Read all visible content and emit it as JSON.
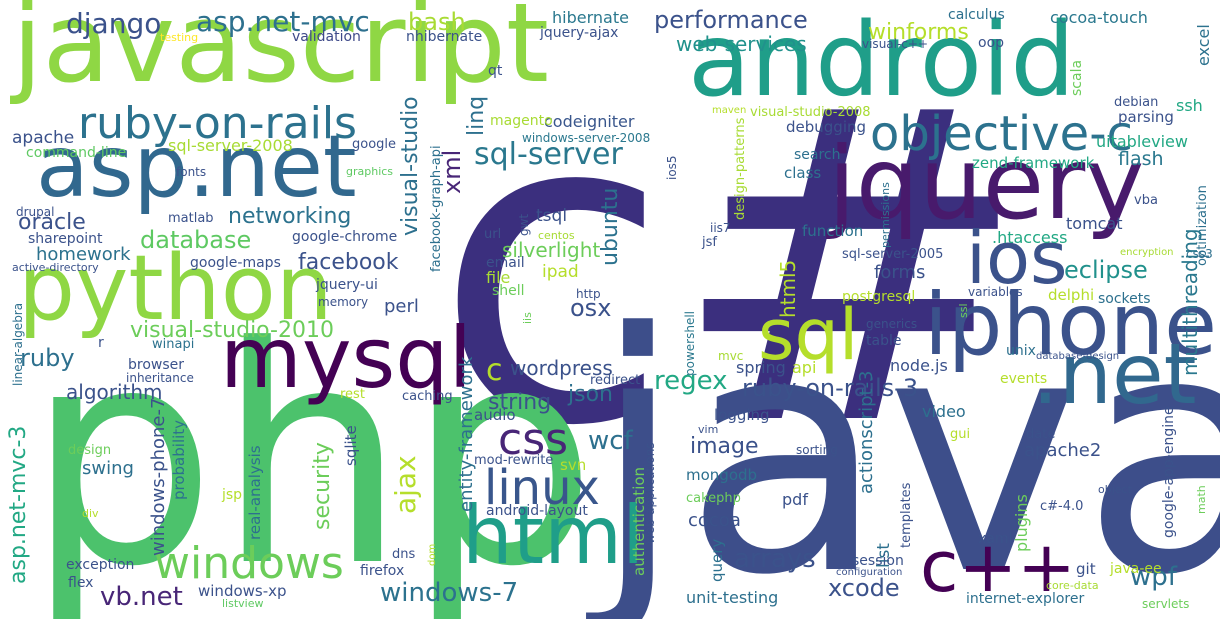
{
  "words": {
    "csharp": {
      "text": "c#",
      "color": "#3b2f7e"
    },
    "java": {
      "text": "java",
      "color": "#3d4e8a"
    },
    "php": {
      "text": "php",
      "color": "#4cc26c"
    },
    "javascript": {
      "text": "javascript",
      "color": "#8fd744"
    },
    "android": {
      "text": "android",
      "color": "#1f9e89"
    },
    "jquery": {
      "text": "jquery",
      "color": "#481a6c"
    },
    "python": {
      "text": "python",
      "color": "#8fd744"
    },
    "asp_net": {
      "text": "asp.net",
      "color": "#31688e"
    },
    "iphone": {
      "text": "iphone",
      "color": "#3b528b"
    },
    "mysql": {
      "text": "mysql",
      "color": "#440154"
    },
    "html": {
      "text": "html",
      "color": "#1f9e89"
    },
    "net": {
      "text": ".net",
      "color": "#31688e"
    },
    "ios": {
      "text": "ios",
      "color": "#3b528b"
    },
    "objective_c": {
      "text": "objective-c",
      "color": "#2c728e"
    },
    "sql": {
      "text": "sql",
      "color": "#b5de2b"
    },
    "cpp": {
      "text": "c++",
      "color": "#440154"
    },
    "ruby_on_rails": {
      "text": "ruby-on-rails",
      "color": "#2c728e"
    },
    "windows": {
      "text": "windows",
      "color": "#6ccd5a"
    },
    "linux": {
      "text": "linux",
      "color": "#39568c"
    },
    "css": {
      "text": "css",
      "color": "#482677"
    },
    "sql_server": {
      "text": "sql-server",
      "color": "#2a788e"
    },
    "django": {
      "text": "django",
      "color": "#3b528b"
    },
    "asp_net_mvc": {
      "text": "asp.net-mvc",
      "color": "#2d708e"
    },
    "bash": {
      "text": "bash",
      "color": "#a8db34"
    },
    "hibernate": {
      "text": "hibernate",
      "color": "#2a788e"
    },
    "performance": {
      "text": "performance",
      "color": "#3b528b"
    },
    "winforms": {
      "text": "winforms",
      "color": "#b5de2b"
    },
    "calculus": {
      "text": "calculus",
      "color": "#2d708e"
    },
    "cocoa_touch": {
      "text": "cocoa-touch",
      "color": "#2a788e"
    },
    "excel": {
      "text": "excel",
      "color": "#2c728e"
    },
    "oop": {
      "text": "oop",
      "color": "#3b528b"
    },
    "visual_cpp_top": {
      "text": "visual-c++",
      "color": "#3b528b"
    },
    "web_services": {
      "text": "web-services",
      "color": "#21918c"
    },
    "validation": {
      "text": "validation",
      "color": "#3e4989"
    },
    "nhibernate": {
      "text": "nhibernate",
      "color": "#3b528b"
    },
    "jquery_ajax": {
      "text": "jquery-ajax",
      "color": "#3b528b"
    },
    "testing": {
      "text": "testing",
      "color": "#fde725"
    },
    "ssh": {
      "text": "ssh",
      "color": "#22a884"
    },
    "scala": {
      "text": "scala",
      "color": "#6ccd5a"
    },
    "debian": {
      "text": "debian",
      "color": "#3b528b"
    },
    "parsing": {
      "text": "parsing",
      "color": "#3b528b"
    },
    "uitableview": {
      "text": "uitableview",
      "color": "#22a884"
    },
    "qt": {
      "text": "qt",
      "color": "#3b528b"
    },
    "linq": {
      "text": "linq",
      "color": "#2d708e"
    },
    "visual_studio": {
      "text": "visual-studio",
      "color": "#2d708e"
    },
    "xml": {
      "text": "xml",
      "color": "#482677"
    },
    "codeigniter": {
      "text": "codeigniter",
      "color": "#39568c"
    },
    "magento": {
      "text": "magento",
      "color": "#a8db34"
    },
    "windows_server_2008": {
      "text": "windows-server-2008",
      "color": "#2a788e"
    },
    "maven": {
      "text": "maven",
      "color": "#b5de2b"
    },
    "design_patterns": {
      "text": "design-patterns",
      "color": "#a8db34"
    },
    "visual_studio_2008": {
      "text": "visual-studio-2008",
      "color": "#a8db34"
    },
    "debugging": {
      "text": "debugging",
      "color": "#3b528b"
    },
    "apache": {
      "text": "apache",
      "color": "#3b528b"
    },
    "command_line": {
      "text": "command-line",
      "color": "#5ec962"
    },
    "sql_server_2008": {
      "text": "sql-server-2008",
      "color": "#a8db34"
    },
    "google": {
      "text": "google",
      "color": "#3b528b"
    },
    "facebook_graph_api": {
      "text": "facebook-graph-api",
      "color": "#2d708e"
    },
    "zend_framework": {
      "text": "zend-framework",
      "color": "#22a884"
    },
    "flash": {
      "text": "flash",
      "color": "#2a788e"
    },
    "search": {
      "text": "search",
      "color": "#2d708e"
    },
    "class": {
      "text": "class",
      "color": "#2d708e"
    },
    "fonts": {
      "text": "fonts",
      "color": "#3b528b"
    },
    "graphics": {
      "text": "graphics",
      "color": "#5ec962"
    },
    "ios5": {
      "text": "ios5",
      "color": "#3b528b"
    },
    "drupal": {
      "text": "drupal",
      "color": "#3b528b"
    },
    "oracle": {
      "text": "oracle",
      "color": "#3b528b"
    },
    "networking": {
      "text": "networking",
      "color": "#2c728e"
    },
    "matlab": {
      "text": "matlab",
      "color": "#3b528b"
    },
    "database": {
      "text": "database",
      "color": "#5ec962"
    },
    "sharepoint": {
      "text": "sharepoint",
      "color": "#3b528b"
    },
    "google_chrome": {
      "text": "google-chrome",
      "color": "#3b528b"
    },
    "homework": {
      "text": "homework",
      "color": "#2c728e"
    },
    "google_maps": {
      "text": "google-maps",
      "color": "#3b528b"
    },
    "active_directory": {
      "text": "active-directory",
      "color": "#3b528b"
    },
    "facebook": {
      "text": "facebook",
      "color": "#3b528b"
    },
    "jquery_ui": {
      "text": "jquery-ui",
      "color": "#3b528b"
    },
    "memory": {
      "text": "memory",
      "color": "#3b528b"
    },
    "perl": {
      "text": "perl",
      "color": "#3b528b"
    },
    "visual_studio_2010": {
      "text": "visual-studio-2010",
      "color": "#6ccd5a"
    },
    "ruby": {
      "text": "ruby",
      "color": "#2d708e"
    },
    "r": {
      "text": "r",
      "color": "#3b528b"
    },
    "winapi": {
      "text": "winapi",
      "color": "#2c728e"
    },
    "browser": {
      "text": "browser",
      "color": "#3b528b"
    },
    "inheritance": {
      "text": "inheritance",
      "color": "#3b528b"
    },
    "algorithm": {
      "text": "algorithm",
      "color": "#3b528b"
    },
    "linear_algebra": {
      "text": "linear-algebra",
      "color": "#2d708e"
    },
    "asp_net_mvc_3": {
      "text": "asp.net-mvc-3",
      "color": "#22a884"
    },
    "tsql": {
      "text": "tsql",
      "color": "#3b528b"
    },
    "gwt": {
      "text": "gwt",
      "color": "#3b528b"
    },
    "url": {
      "text": "url",
      "color": "#3b528b"
    },
    "centos": {
      "text": "centos",
      "color": "#a8db34"
    },
    "silverlight": {
      "text": "silverlight",
      "color": "#6ccd5a"
    },
    "email": {
      "text": "email",
      "color": "#3b528b"
    },
    "file": {
      "text": "file",
      "color": "#a8db34"
    },
    "shell": {
      "text": "shell",
      "color": "#6ccd5a"
    },
    "iis": {
      "text": "iis",
      "color": "#6ccd5a"
    },
    "ipad": {
      "text": "ipad",
      "color": "#b5de2b"
    },
    "ubuntu": {
      "text": "ubuntu",
      "color": "#2c728e"
    },
    "osx": {
      "text": "osx",
      "color": "#3b528b"
    },
    "http": {
      "text": "http",
      "color": "#3b528b"
    },
    "powershell": {
      "text": "powershell",
      "color": "#2a788e"
    },
    "html5": {
      "text": "html5",
      "color": "#b5de2b"
    },
    "iis7": {
      "text": "iis7",
      "color": "#3b528b"
    },
    "jsf": {
      "text": "jsf",
      "color": "#3b528b"
    },
    "function": {
      "text": "function",
      "color": "#2c728e"
    },
    "htaccess": {
      "text": ".htaccess",
      "color": "#22a884"
    },
    "sql_server_2005": {
      "text": "sql-server-2005",
      "color": "#3b528b"
    },
    "forms": {
      "text": "forms",
      "color": "#3b528b"
    },
    "eclipse": {
      "text": "eclipse",
      "color": "#21918c"
    },
    "permissions": {
      "text": "permissions",
      "color": "#2d708e"
    },
    "optimization": {
      "text": "optimization",
      "color": "#2d708e"
    },
    "encryption": {
      "text": "encryption",
      "color": "#a8db34"
    },
    "css3": {
      "text": "css3",
      "color": "#2d708e"
    },
    "tomcat": {
      "text": "tomcat",
      "color": "#3b528b"
    },
    "vba": {
      "text": "vba",
      "color": "#3b528b"
    },
    "postgresql": {
      "text": "postgresql",
      "color": "#b5de2b"
    },
    "delphi": {
      "text": "delphi",
      "color": "#b5de2b"
    },
    "variables": {
      "text": "variables",
      "color": "#3b528b"
    },
    "ssl": {
      "text": "ssl",
      "color": "#6ccd5a"
    },
    "sockets": {
      "text": "sockets",
      "color": "#2d708e"
    },
    "multithreading": {
      "text": "multithreading",
      "color": "#2a788e"
    },
    "generics": {
      "text": "generics",
      "color": "#3b528b"
    },
    "table": {
      "text": "table",
      "color": "#3b528b"
    },
    "unix": {
      "text": "unix",
      "color": "#2d708e"
    },
    "database_design": {
      "text": "database-design",
      "color": "#3b528b"
    },
    "node_js": {
      "text": "node.js",
      "color": "#3b528b"
    },
    "api": {
      "text": "api",
      "color": "#b5de2b"
    },
    "spring": {
      "text": "spring",
      "color": "#3b528b"
    },
    "mvc": {
      "text": "mvc",
      "color": "#a8db34"
    },
    "wordpress": {
      "text": "wordpress",
      "color": "#3b528b"
    },
    "c": {
      "text": "c",
      "color": "#b5de2b"
    },
    "regex": {
      "text": "regex",
      "color": "#22a884"
    },
    "ruby_on_rails_3": {
      "text": "ruby-on-rails-3",
      "color": "#3b528b"
    },
    "events": {
      "text": "events",
      "color": "#b5de2b"
    },
    "json": {
      "text": "json",
      "color": "#2d708e"
    },
    "string": {
      "text": "string",
      "color": "#3b528b"
    },
    "redirect": {
      "text": "redirect",
      "color": "#3b528b"
    },
    "caching": {
      "text": "caching",
      "color": "#3b528b"
    },
    "rest": {
      "text": "rest",
      "color": "#b5de2b"
    },
    "audio": {
      "text": "audio",
      "color": "#3b528b"
    },
    "actionscript_3": {
      "text": "actionscript-3",
      "color": "#2d708e"
    },
    "logging": {
      "text": "logging",
      "color": "#3b528b"
    },
    "video": {
      "text": "video",
      "color": "#2d708e"
    },
    "gui": {
      "text": "gui",
      "color": "#b5de2b"
    },
    "date": {
      "text": "date",
      "color": "#3b528b"
    },
    "image": {
      "text": "image",
      "color": "#3b528b"
    },
    "wcf": {
      "text": "wcf",
      "color": "#2d708e"
    },
    "ajax": {
      "text": "ajax",
      "color": "#b5de2b"
    },
    "security": {
      "text": "security",
      "color": "#6ccd5a"
    },
    "sqlite": {
      "text": "sqlite",
      "color": "#3b528b"
    },
    "entity_framework": {
      "text": "entity-framework",
      "color": "#2d708e"
    },
    "swing": {
      "text": "swing",
      "color": "#2d708e"
    },
    "probability": {
      "text": "probability",
      "color": "#2c728e"
    },
    "windows_phone_7": {
      "text": "windows-phone-7",
      "color": "#3b528b"
    },
    "design": {
      "text": "design",
      "color": "#6ccd5a"
    },
    "div": {
      "text": "div",
      "color": "#b5de2b"
    },
    "jsp": {
      "text": "jsp",
      "color": "#b5de2b"
    },
    "real_analysis": {
      "text": "real-analysis",
      "color": "#2d708e"
    },
    "mod_rewrite": {
      "text": "mod-rewrite",
      "color": "#3b528b"
    },
    "svn": {
      "text": "svn",
      "color": "#b5de2b"
    },
    "vim": {
      "text": "vim",
      "color": "#3b528b"
    },
    "android_layout": {
      "text": "android-layout",
      "color": "#3b528b"
    },
    "authentication": {
      "text": "authentication",
      "color": "#6ccd5a"
    },
    "web_applications": {
      "text": "web-applications",
      "color": "#3b528b"
    },
    "mongodb": {
      "text": "mongodb",
      "color": "#2d708e"
    },
    "sorting": {
      "text": "sorting",
      "color": "#3b528b"
    },
    "apache2": {
      "text": "apache2",
      "color": "#3b528b"
    },
    "google_app_engine": {
      "text": "google-app-engine",
      "color": "#3b528b"
    },
    "cakephp": {
      "text": "cakephp",
      "color": "#6ccd5a"
    },
    "pdf": {
      "text": "pdf",
      "color": "#3b528b"
    },
    "templates": {
      "text": "templates",
      "color": "#3b528b"
    },
    "plugins": {
      "text": "plugins",
      "color": "#6ccd5a"
    },
    "object": {
      "text": "object",
      "color": "#3b528b"
    },
    "math": {
      "text": "math",
      "color": "#6ccd5a"
    },
    "csharp_4": {
      "text": "c#-4.0",
      "color": "#3b528b"
    },
    "cocoa": {
      "text": "cocoa",
      "color": "#3b528b"
    },
    "query": {
      "text": "query",
      "color": "#2d708e"
    },
    "arrays": {
      "text": "arrays",
      "color": "#3b528b"
    },
    "xcode": {
      "text": "xcode",
      "color": "#3b528b"
    },
    "list": {
      "text": "list",
      "color": "#2d708e"
    },
    "wpf": {
      "text": "wpf",
      "color": "#2d708e"
    },
    "xaml": {
      "text": "xaml",
      "color": "#3b528b"
    },
    "session": {
      "text": "session",
      "color": "#3b528b"
    },
    "configuration": {
      "text": "configuration",
      "color": "#3b528b"
    },
    "git": {
      "text": "git",
      "color": "#3b528b"
    },
    "java_ee": {
      "text": "java-ee",
      "color": "#b5de2b"
    },
    "core_data": {
      "text": "core-data",
      "color": "#a8db34"
    },
    "servlets": {
      "text": "servlets",
      "color": "#6ccd5a"
    },
    "internet_explorer": {
      "text": "internet-explorer",
      "color": "#2d708e"
    },
    "unit_testing": {
      "text": "unit-testing",
      "color": "#2d708e"
    },
    "windows_7": {
      "text": "windows-7",
      "color": "#2c728e"
    },
    "vb_net": {
      "text": "vb.net",
      "color": "#482677"
    },
    "windows_xp": {
      "text": "windows-xp",
      "color": "#3b528b"
    },
    "listview": {
      "text": "listview",
      "color": "#5ec962"
    },
    "flex": {
      "text": "flex",
      "color": "#3b528b"
    },
    "exception": {
      "text": "exception",
      "color": "#3b528b"
    },
    "dns": {
      "text": "dns",
      "color": "#3b528b"
    },
    "firefox": {
      "text": "firefox",
      "color": "#3b528b"
    },
    "dom": {
      "text": "dom",
      "color": "#b5de2b"
    },
    "visual_cpp": {
      "text": "visual-c++",
      "color": "#3b528b"
    }
  }
}
